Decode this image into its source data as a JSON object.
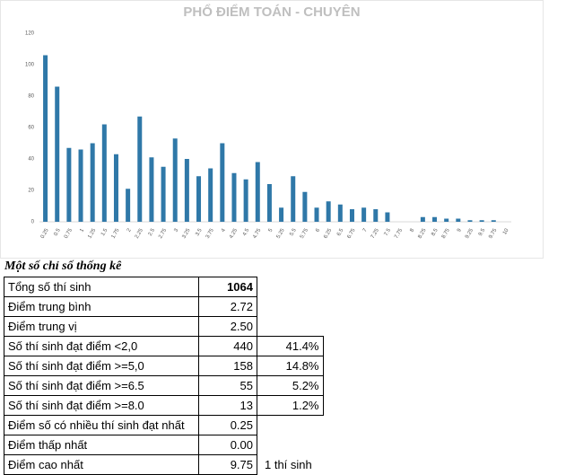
{
  "chart_data": {
    "type": "bar",
    "title": "PHỔ ĐIỂM TOÁN - CHUYÊN",
    "categories": [
      "0.25",
      "0.5",
      "0.75",
      "1",
      "1.25",
      "1.5",
      "1.75",
      "2",
      "2.25",
      "2.5",
      "2.75",
      "3",
      "3.25",
      "3.5",
      "3.75",
      "4",
      "4.25",
      "4.5",
      "4.75",
      "5",
      "5.25",
      "5.5",
      "5.75",
      "6",
      "6.25",
      "6.5",
      "6.75",
      "7",
      "7.25",
      "7.5",
      "7.75",
      "8",
      "8.25",
      "8.5",
      "8.75",
      "9",
      "9.25",
      "9.5",
      "9.75",
      "10"
    ],
    "values": [
      106,
      86,
      47,
      46,
      50,
      62,
      43,
      21,
      67,
      41,
      35,
      53,
      40,
      29,
      34,
      50,
      31,
      27,
      38,
      24,
      9,
      29,
      19,
      9,
      13,
      11,
      8,
      9,
      8,
      6,
      0,
      0,
      3,
      3,
      2,
      2,
      1,
      1,
      1,
      0
    ],
    "color": "#2f78a8",
    "ylim": [
      0,
      120
    ],
    "yticks": [
      0,
      20,
      40,
      60,
      80,
      100,
      120
    ],
    "grid": false
  },
  "table": {
    "title": "Một số chỉ số thống kê",
    "rows": [
      [
        "Tổng số thí sinh",
        "1064"
      ],
      [
        "Điểm trung bình",
        "2.72"
      ],
      [
        "Điểm trung vị",
        "2.50"
      ],
      [
        "Số thí sinh đạt điểm <2,0",
        "440",
        "41.4%"
      ],
      [
        "Số thí sinh đạt điểm >=5,0",
        "158",
        "14.8%"
      ],
      [
        "Số thí sinh đạt điểm >=6.5",
        "55",
        "5.2%"
      ],
      [
        "Số thí sinh đạt điểm >=8.0",
        "13",
        "1.2%"
      ],
      [
        "Điểm số có nhiều thí sinh đạt nhất",
        "0.25"
      ],
      [
        "Điểm thấp nhất",
        "0.00"
      ],
      [
        "Điểm cao nhất",
        "9.75",
        "1 thí sinh"
      ]
    ]
  }
}
